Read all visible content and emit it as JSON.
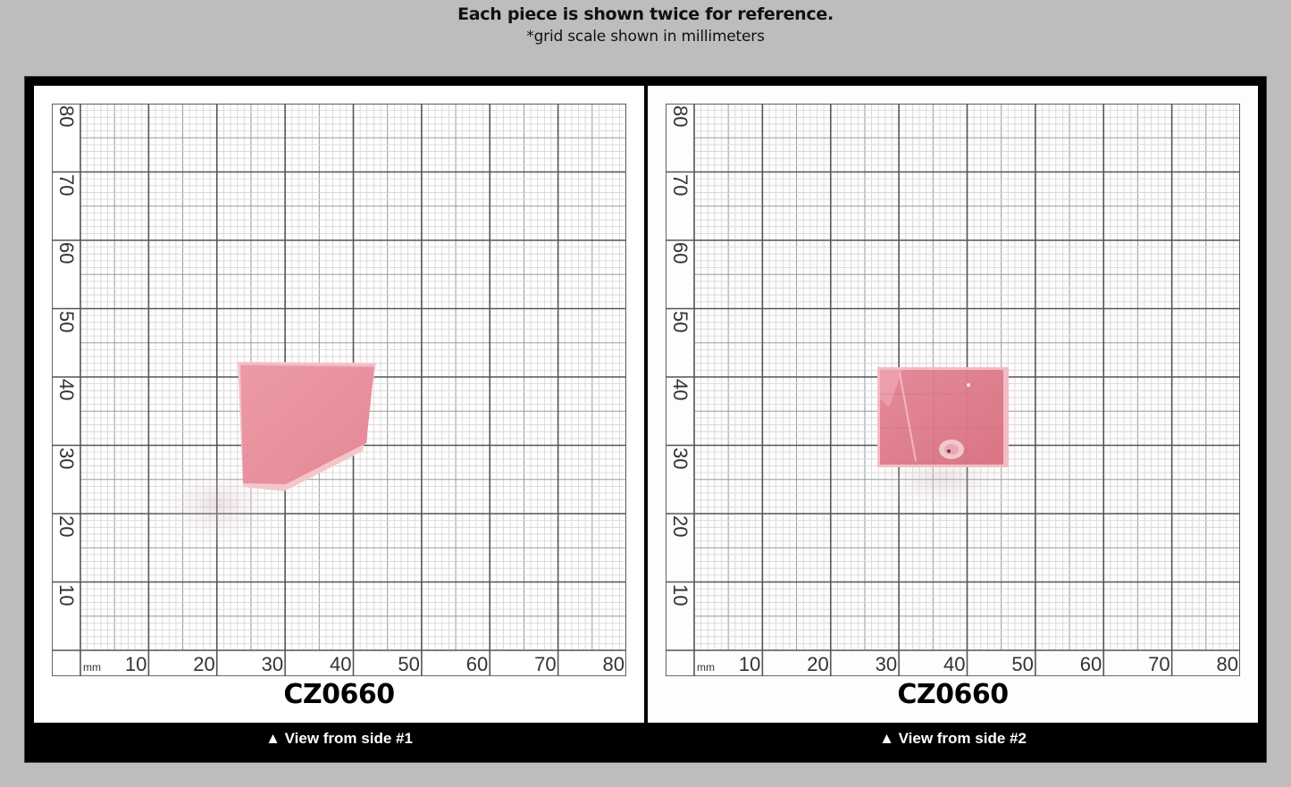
{
  "header": {
    "title": "Each piece is shown twice for reference.",
    "subtitle": "*grid scale shown in millimeters"
  },
  "grid": {
    "unit_label": "mm",
    "x_ticks": [
      "10",
      "20",
      "30",
      "40",
      "50",
      "60",
      "70",
      "80"
    ],
    "y_ticks": [
      "80",
      "70",
      "60",
      "50",
      "40",
      "30",
      "20",
      "10"
    ]
  },
  "panels": [
    {
      "id": "side-1",
      "code": "CZ0660",
      "caption": "▲ View from side #1",
      "piece": {
        "color": "#e98f9c",
        "edge_color": "#f3c3c9",
        "approx_mm": {
          "x_from": 27,
          "x_to": 47,
          "y_from": 24,
          "y_to": 43
        }
      }
    },
    {
      "id": "side-2",
      "code": "CZ0660",
      "caption": "▲ View from side #2",
      "piece": {
        "color": "#df7f8d",
        "edge_color": "#f0b8c0",
        "approx_mm": {
          "x_from": 27,
          "x_to": 46,
          "y_from": 31,
          "y_to": 42
        }
      }
    }
  ],
  "colors": {
    "background": "#bdbdbd",
    "frame": "#000000",
    "grid_major": "#555555",
    "grid_minor": "#d4d4d4",
    "grid_mid": "#9a9a9a"
  }
}
